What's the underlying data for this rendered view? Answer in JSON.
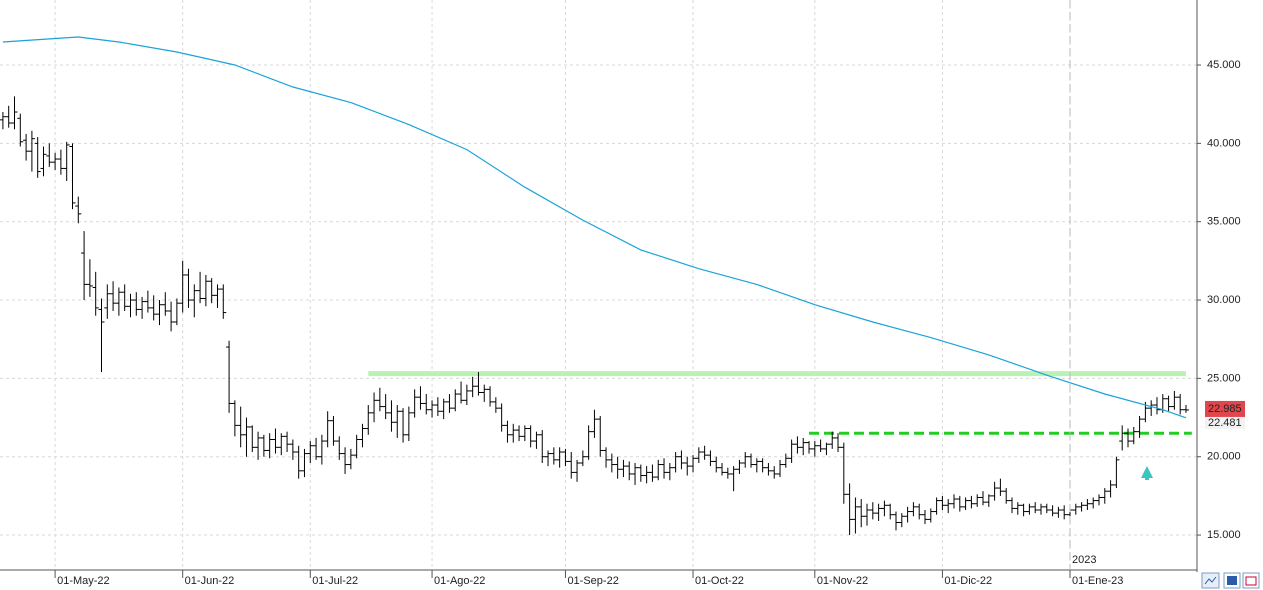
{
  "chart_data": {
    "type": "ohlc",
    "color": "#000000",
    "ohlc": [
      [
        41.5,
        42.0,
        40.9,
        41.7
      ],
      [
        41.7,
        42.4,
        41.0,
        41.3
      ],
      [
        41.3,
        43.0,
        40.9,
        42.0
      ],
      [
        41.6,
        41.9,
        39.8,
        40.1
      ],
      [
        40.2,
        40.6,
        38.9,
        39.5
      ],
      [
        39.5,
        40.8,
        38.2,
        40.3
      ],
      [
        40.0,
        40.4,
        37.8,
        38.2
      ],
      [
        38.4,
        39.8,
        37.9,
        39.3
      ],
      [
        39.2,
        40.0,
        38.5,
        38.8
      ],
      [
        38.8,
        39.4,
        38.3,
        39.0
      ],
      [
        39.0,
        39.6,
        38.0,
        38.4
      ],
      [
        38.4,
        40.1,
        37.6,
        39.9
      ],
      [
        39.8,
        40.0,
        35.8,
        36.2
      ],
      [
        36.0,
        36.6,
        34.9,
        35.5
      ],
      [
        33.0,
        34.4,
        30.0,
        31.0
      ],
      [
        31.0,
        32.6,
        30.2,
        30.9
      ],
      [
        30.8,
        31.8,
        29.0,
        29.5
      ],
      [
        29.4,
        30.1,
        25.4,
        28.6
      ],
      [
        29.5,
        31.0,
        28.8,
        30.4
      ],
      [
        30.4,
        31.2,
        29.3,
        29.8
      ],
      [
        29.8,
        30.8,
        29.0,
        30.5
      ],
      [
        30.5,
        31.0,
        29.3,
        29.6
      ],
      [
        29.6,
        30.4,
        28.9,
        30.0
      ],
      [
        30.0,
        30.5,
        29.0,
        29.4
      ],
      [
        29.4,
        30.2,
        28.8,
        29.9
      ],
      [
        29.9,
        30.6,
        29.2,
        29.5
      ],
      [
        29.5,
        30.3,
        28.7,
        29.1
      ],
      [
        29.1,
        30.0,
        28.4,
        29.7
      ],
      [
        29.7,
        30.5,
        29.0,
        29.3
      ],
      [
        29.3,
        29.9,
        28.0,
        28.6
      ],
      [
        28.6,
        30.1,
        28.4,
        29.8
      ],
      [
        29.8,
        32.5,
        29.2,
        31.6
      ],
      [
        31.6,
        32.0,
        29.5,
        30.0
      ],
      [
        30.0,
        31.0,
        28.9,
        30.6
      ],
      [
        30.6,
        31.8,
        29.8,
        30.1
      ],
      [
        30.1,
        31.6,
        29.6,
        31.2
      ],
      [
        31.2,
        31.4,
        29.8,
        30.3
      ],
      [
        30.3,
        31.0,
        29.5,
        30.7
      ],
      [
        30.7,
        31.0,
        28.8,
        29.2
      ],
      [
        27.0,
        27.4,
        22.8,
        23.4
      ],
      [
        23.4,
        23.6,
        21.3,
        22.0
      ],
      [
        22.0,
        23.2,
        20.6,
        21.4
      ],
      [
        21.4,
        22.5,
        20.0,
        21.9
      ],
      [
        21.9,
        22.0,
        20.3,
        20.6
      ],
      [
        20.6,
        21.6,
        19.8,
        21.2
      ],
      [
        21.2,
        21.4,
        20.0,
        20.4
      ],
      [
        20.4,
        21.5,
        19.9,
        21.1
      ],
      [
        21.1,
        21.8,
        20.2,
        20.6
      ],
      [
        20.6,
        21.5,
        20.1,
        21.3
      ],
      [
        21.3,
        21.6,
        20.3,
        20.8
      ],
      [
        20.8,
        21.1,
        19.8,
        20.3
      ],
      [
        20.3,
        20.7,
        18.6,
        19.1
      ],
      [
        19.1,
        20.5,
        18.7,
        20.2
      ],
      [
        20.2,
        21.0,
        19.6,
        20.7
      ],
      [
        20.7,
        21.2,
        19.8,
        20.0
      ],
      [
        20.0,
        21.4,
        19.5,
        21.0
      ],
      [
        21.0,
        22.9,
        20.6,
        22.3
      ],
      [
        22.3,
        22.6,
        20.7,
        21.0
      ],
      [
        21.0,
        21.3,
        19.8,
        20.2
      ],
      [
        20.2,
        20.6,
        18.9,
        19.5
      ],
      [
        19.5,
        20.5,
        19.2,
        20.1
      ],
      [
        20.1,
        21.4,
        19.9,
        21.1
      ],
      [
        21.1,
        22.1,
        20.6,
        21.8
      ],
      [
        21.8,
        23.3,
        21.4,
        22.8
      ],
      [
        22.8,
        24.1,
        22.2,
        23.6
      ],
      [
        23.6,
        24.4,
        22.9,
        23.2
      ],
      [
        23.2,
        24.0,
        22.4,
        22.8
      ],
      [
        22.8,
        23.6,
        21.6,
        22.2
      ],
      [
        22.2,
        23.3,
        21.2,
        22.9
      ],
      [
        22.9,
        23.1,
        20.9,
        21.4
      ],
      [
        21.4,
        23.2,
        21.0,
        22.8
      ],
      [
        22.8,
        24.3,
        22.5,
        23.8
      ],
      [
        23.8,
        24.5,
        23.0,
        23.4
      ],
      [
        23.4,
        24.0,
        22.7,
        23.0
      ],
      [
        23.0,
        23.6,
        22.5,
        23.3
      ],
      [
        23.3,
        23.8,
        22.6,
        22.9
      ],
      [
        22.9,
        23.7,
        22.4,
        23.5
      ],
      [
        23.5,
        24.0,
        22.8,
        23.1
      ],
      [
        23.1,
        24.3,
        22.9,
        24.0
      ],
      [
        24.0,
        24.8,
        23.4,
        23.6
      ],
      [
        23.6,
        24.6,
        23.3,
        24.2
      ],
      [
        24.2,
        25.1,
        23.8,
        24.5
      ],
      [
        24.5,
        25.4,
        23.9,
        24.1
      ],
      [
        24.1,
        24.6,
        23.5,
        24.3
      ],
      [
        24.3,
        24.5,
        23.2,
        23.5
      ],
      [
        23.5,
        23.8,
        22.8,
        23.1
      ],
      [
        23.1,
        23.4,
        21.6,
        22.0
      ],
      [
        22.0,
        22.3,
        20.9,
        21.4
      ],
      [
        21.4,
        22.1,
        20.9,
        21.7
      ],
      [
        21.7,
        22.0,
        21.0,
        21.3
      ],
      [
        21.3,
        22.0,
        21.0,
        21.8
      ],
      [
        21.8,
        22.0,
        20.6,
        21.0
      ],
      [
        21.0,
        21.6,
        20.5,
        21.4
      ],
      [
        21.4,
        21.7,
        19.6,
        20.0
      ],
      [
        20.0,
        20.4,
        19.4,
        20.2
      ],
      [
        20.2,
        20.6,
        19.5,
        19.8
      ],
      [
        19.8,
        20.6,
        19.3,
        20.3
      ],
      [
        20.3,
        20.5,
        19.4,
        19.7
      ],
      [
        19.7,
        20.3,
        18.6,
        19.0
      ],
      [
        19.0,
        19.8,
        18.4,
        19.6
      ],
      [
        19.6,
        20.4,
        19.4,
        20.0
      ],
      [
        20.0,
        22.0,
        19.8,
        21.6
      ],
      [
        21.6,
        23.0,
        21.2,
        22.4
      ],
      [
        22.4,
        22.6,
        20.0,
        20.4
      ],
      [
        20.4,
        20.6,
        19.3,
        19.8
      ],
      [
        19.8,
        20.2,
        19.0,
        19.5
      ],
      [
        19.5,
        20.0,
        18.6,
        19.2
      ],
      [
        19.2,
        19.8,
        18.7,
        19.4
      ],
      [
        19.4,
        19.7,
        18.5,
        18.9
      ],
      [
        18.9,
        19.6,
        18.2,
        19.3
      ],
      [
        19.3,
        19.5,
        18.4,
        18.8
      ],
      [
        18.8,
        19.4,
        18.3,
        19.0
      ],
      [
        19.0,
        19.5,
        18.4,
        18.7
      ],
      [
        18.7,
        19.8,
        18.5,
        19.5
      ],
      [
        19.5,
        19.9,
        18.6,
        19.0
      ],
      [
        19.0,
        19.6,
        18.5,
        19.3
      ],
      [
        19.3,
        20.3,
        19.0,
        20.0
      ],
      [
        20.0,
        20.4,
        19.2,
        19.6
      ],
      [
        19.6,
        20.0,
        18.8,
        19.4
      ],
      [
        19.4,
        20.1,
        19.0,
        19.9
      ],
      [
        19.9,
        20.6,
        19.6,
        20.3
      ],
      [
        20.3,
        20.7,
        19.8,
        20.1
      ],
      [
        20.1,
        20.4,
        19.4,
        19.7
      ],
      [
        19.7,
        20.0,
        19.0,
        19.3
      ],
      [
        19.3,
        19.6,
        18.8,
        19.0
      ],
      [
        19.0,
        19.3,
        18.6,
        18.9
      ],
      [
        18.9,
        19.4,
        17.8,
        19.2
      ],
      [
        19.2,
        19.8,
        18.9,
        19.6
      ],
      [
        19.6,
        20.3,
        19.3,
        20.0
      ],
      [
        20.0,
        20.2,
        19.3,
        19.5
      ],
      [
        19.5,
        19.9,
        19.0,
        19.7
      ],
      [
        19.7,
        19.9,
        19.0,
        19.3
      ],
      [
        19.3,
        19.6,
        18.8,
        19.1
      ],
      [
        19.1,
        19.4,
        18.6,
        18.9
      ],
      [
        18.9,
        19.8,
        18.7,
        19.5
      ],
      [
        19.5,
        20.2,
        19.3,
        19.9
      ],
      [
        19.9,
        21.1,
        19.6,
        20.8
      ],
      [
        20.8,
        21.3,
        20.2,
        20.6
      ],
      [
        20.6,
        21.2,
        20.1,
        20.9
      ],
      [
        20.9,
        21.0,
        20.2,
        20.5
      ],
      [
        20.5,
        21.0,
        20.0,
        20.7
      ],
      [
        20.7,
        21.1,
        20.3,
        20.5
      ],
      [
        20.5,
        20.9,
        20.1,
        20.8
      ],
      [
        20.8,
        21.6,
        20.5,
        21.2
      ],
      [
        21.2,
        21.5,
        20.3,
        20.6
      ],
      [
        20.6,
        20.9,
        17.0,
        17.6
      ],
      [
        17.6,
        18.3,
        15.0,
        16.0
      ],
      [
        16.0,
        17.4,
        15.1,
        16.8
      ],
      [
        16.8,
        17.3,
        15.5,
        16.2
      ],
      [
        16.2,
        17.0,
        15.6,
        16.6
      ],
      [
        16.6,
        17.1,
        16.0,
        16.4
      ],
      [
        16.4,
        17.0,
        15.9,
        16.7
      ],
      [
        16.7,
        17.2,
        16.2,
        16.9
      ],
      [
        16.9,
        17.0,
        16.0,
        16.3
      ],
      [
        16.3,
        16.5,
        15.3,
        15.8
      ],
      [
        15.8,
        16.4,
        15.5,
        16.2
      ],
      [
        16.2,
        16.8,
        15.8,
        16.5
      ],
      [
        16.5,
        17.1,
        16.2,
        16.8
      ],
      [
        16.8,
        17.0,
        16.0,
        16.3
      ],
      [
        16.3,
        16.6,
        15.7,
        16.0
      ],
      [
        16.0,
        16.7,
        15.8,
        16.5
      ],
      [
        16.5,
        17.4,
        16.3,
        17.2
      ],
      [
        17.2,
        17.5,
        16.6,
        16.9
      ],
      [
        16.9,
        17.3,
        16.4,
        17.0
      ],
      [
        17.0,
        17.6,
        16.7,
        17.3
      ],
      [
        17.3,
        17.5,
        16.5,
        16.8
      ],
      [
        16.8,
        17.4,
        16.6,
        17.2
      ],
      [
        17.2,
        17.5,
        16.7,
        17.0
      ],
      [
        17.0,
        17.6,
        16.8,
        17.4
      ],
      [
        17.4,
        17.8,
        16.9,
        17.1
      ],
      [
        17.1,
        17.6,
        16.8,
        17.5
      ],
      [
        17.5,
        18.4,
        17.2,
        18.0
      ],
      [
        18.0,
        18.6,
        17.5,
        17.8
      ],
      [
        17.8,
        18.0,
        17.0,
        17.2
      ],
      [
        17.2,
        17.4,
        16.4,
        16.7
      ],
      [
        16.7,
        17.1,
        16.3,
        16.9
      ],
      [
        16.9,
        17.0,
        16.2,
        16.5
      ],
      [
        16.5,
        17.0,
        16.3,
        16.8
      ],
      [
        16.8,
        17.1,
        16.4,
        16.6
      ],
      [
        16.6,
        17.0,
        16.3,
        16.8
      ],
      [
        16.8,
        17.0,
        16.4,
        16.6
      ],
      [
        16.6,
        16.9,
        16.2,
        16.4
      ],
      [
        16.4,
        16.8,
        16.1,
        16.6
      ],
      [
        16.6,
        16.9,
        16.0,
        16.3
      ],
      [
        16.3,
        16.8,
        16.1,
        16.6
      ],
      [
        16.6,
        17.0,
        16.3,
        16.8
      ],
      [
        16.8,
        17.1,
        16.5,
        16.9
      ],
      [
        16.9,
        17.3,
        16.6,
        17.0
      ],
      [
        17.0,
        17.4,
        16.7,
        17.2
      ],
      [
        17.2,
        17.6,
        16.9,
        17.4
      ],
      [
        17.4,
        18.0,
        17.0,
        17.8
      ],
      [
        17.8,
        18.5,
        17.4,
        18.2
      ],
      [
        18.2,
        20.0,
        18.0,
        19.8
      ],
      [
        21.0,
        22.0,
        20.4,
        21.5
      ],
      [
        21.5,
        21.8,
        20.6,
        21.0
      ],
      [
        21.0,
        21.9,
        20.8,
        21.6
      ],
      [
        21.6,
        22.6,
        21.2,
        22.4
      ],
      [
        22.4,
        23.5,
        22.2,
        23.1
      ],
      [
        23.1,
        23.6,
        22.6,
        23.3
      ],
      [
        23.3,
        23.8,
        22.7,
        23.0
      ],
      [
        23.0,
        24.0,
        22.8,
        23.7
      ],
      [
        23.7,
        23.9,
        22.9,
        23.2
      ],
      [
        23.2,
        24.2,
        23.0,
        23.8
      ],
      [
        23.8,
        24.0,
        22.7,
        23.0
      ],
      [
        23.0,
        23.3,
        22.8,
        22.985
      ]
    ],
    "last_price_color": "#e0474c",
    "ma": {
      "color": "#1aa3d9",
      "x": [
        0,
        10,
        13,
        20,
        30,
        40,
        50,
        60,
        70,
        80,
        90,
        100,
        110,
        120,
        130,
        140,
        150,
        160,
        170,
        180,
        190,
        200,
        204
      ],
      "values": [
        46.47,
        46.72,
        46.79,
        46.47,
        45.83,
        45.0,
        43.6,
        42.6,
        41.2,
        39.6,
        37.2,
        35.1,
        33.2,
        32.0,
        31.0,
        29.7,
        28.6,
        27.6,
        26.5,
        25.2,
        24.0,
        23.0,
        22.481
      ]
    },
    "levels": [
      {
        "value": 25.3,
        "from": 63,
        "to": 204,
        "color": "#b9f3b4",
        "style": "solid"
      },
      {
        "value": 21.5,
        "from": 139,
        "to": 205,
        "color": "#22cc22",
        "style": "dashed"
      }
    ],
    "xlim": [
      -0.5,
      205.9
    ],
    "ylim": [
      12.77,
      49.15
    ],
    "grid": true,
    "yticks": [
      {
        "value": 15,
        "label": "15.000"
      },
      {
        "value": 20,
        "label": "20.000"
      },
      {
        "value": 25,
        "label": "25.000"
      },
      {
        "value": 30,
        "label": "30.000"
      },
      {
        "value": 35,
        "label": "35.000"
      },
      {
        "value": 40,
        "label": "40.000"
      },
      {
        "value": 45,
        "label": "45.000"
      }
    ],
    "xticks": [
      {
        "value": 9,
        "label": "01-May-22"
      },
      {
        "value": 31,
        "label": "01-Jun-22"
      },
      {
        "value": 53,
        "label": "01-Jul-22"
      },
      {
        "value": 74,
        "label": "01-Ago-22"
      },
      {
        "value": 97,
        "label": "01-Sep-22"
      },
      {
        "value": 119,
        "label": "01-Oct-22"
      },
      {
        "value": 140,
        "label": "01-Nov-22"
      },
      {
        "value": 162,
        "label": "01-Dic-22"
      },
      {
        "value": 184,
        "label": "01-Ene-23"
      }
    ],
    "year_label": "2023"
  }
}
